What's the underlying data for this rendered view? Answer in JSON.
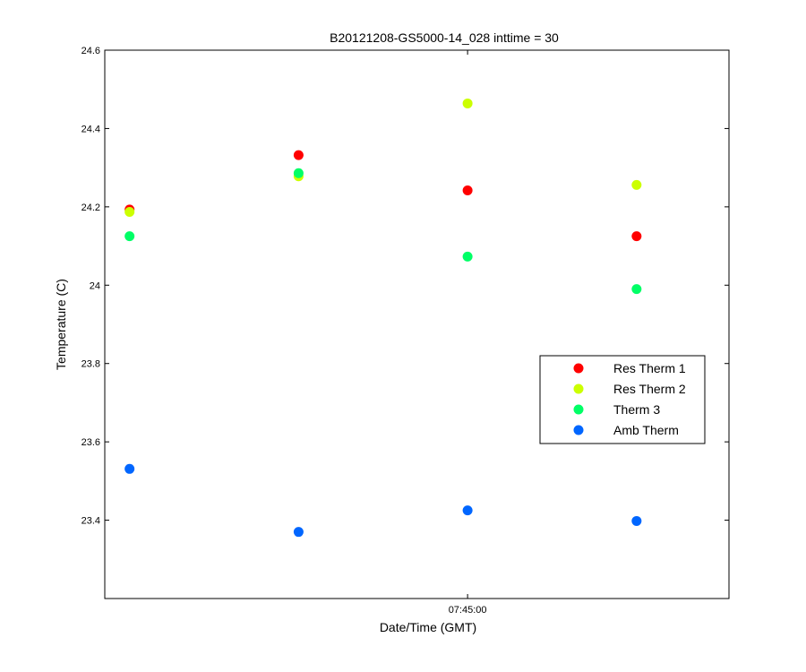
{
  "chart_data": {
    "type": "scatter",
    "title": "B20121208-GS5000-14_028 inttime = 30",
    "xlabel": "Date/Time (GMT)",
    "ylabel": "Temperature (C)",
    "ylim": [
      23.2,
      24.6
    ],
    "yticks": [
      23.4,
      23.6,
      23.8,
      24,
      24.2,
      24.4,
      24.6
    ],
    "ytick_labels": [
      "23.4",
      "23.6",
      "23.8",
      "24",
      "24.2",
      "24.4",
      "24.6"
    ],
    "x_seconds": [
      -90,
      -60,
      -30,
      0
    ],
    "xlim": [
      -94.4,
      16.4
    ],
    "xticks": [
      -30
    ],
    "xtick_labels": [
      "07:45:00"
    ],
    "grid": false,
    "legend_position": "right",
    "series": [
      {
        "name": "Res Therm 1",
        "color": "#ff0000",
        "values": [
          24.193,
          24.332,
          24.242,
          24.125
        ]
      },
      {
        "name": "Res Therm 2",
        "color": "#ccff00",
        "values": [
          24.187,
          24.278,
          24.464,
          24.256
        ]
      },
      {
        "name": "Therm 3",
        "color": "#00ff66",
        "values": [
          24.125,
          24.286,
          24.073,
          23.99
        ]
      },
      {
        "name": "Amb Therm",
        "color": "#0066ff",
        "values": [
          23.531,
          23.37,
          23.425,
          23.398
        ]
      }
    ]
  }
}
